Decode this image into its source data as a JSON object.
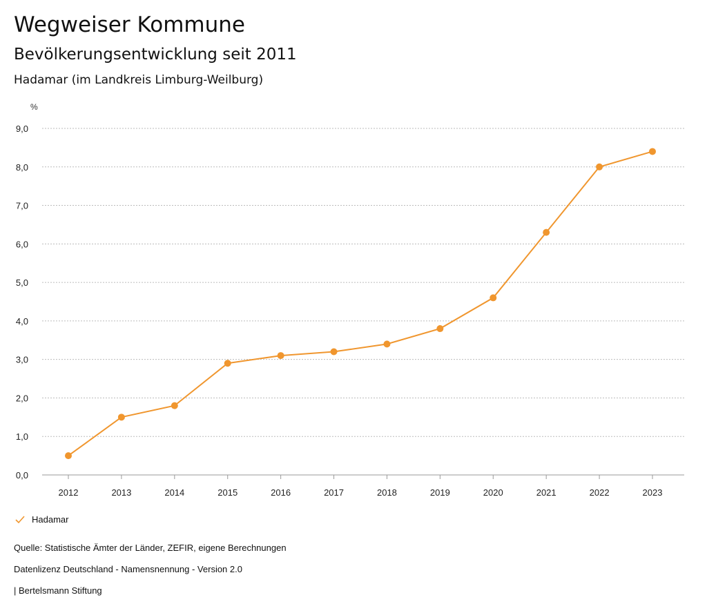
{
  "header": {
    "title": "Wegweiser Kommune",
    "subtitle": "Bevölkerungsentwicklung seit 2011",
    "region": "Hadamar (im Landkreis Limburg-Weilburg)"
  },
  "chart_data": {
    "type": "line",
    "ylabel": "%",
    "x": [
      "2012",
      "2013",
      "2014",
      "2015",
      "2016",
      "2017",
      "2018",
      "2019",
      "2020",
      "2021",
      "2022",
      "2023"
    ],
    "series": [
      {
        "name": "Hadamar",
        "color": "#f0962e",
        "values": [
          0.5,
          1.5,
          1.8,
          2.9,
          3.1,
          3.2,
          3.4,
          3.8,
          4.6,
          6.3,
          8.0,
          8.4
        ]
      }
    ],
    "yticks": [
      "0,0",
      "1,0",
      "2,0",
      "3,0",
      "4,0",
      "5,0",
      "6,0",
      "7,0",
      "8,0",
      "9,0"
    ],
    "ylim": [
      0,
      9
    ],
    "grid": true,
    "legend": "bottom-left"
  },
  "footer": {
    "source": "Quelle: Statistische Ämter der Länder, ZEFIR, eigene Berechnungen",
    "license": "Datenlizenz Deutschland - Namensnennung - Version 2.0",
    "brand": "| Bertelsmann Stiftung"
  }
}
